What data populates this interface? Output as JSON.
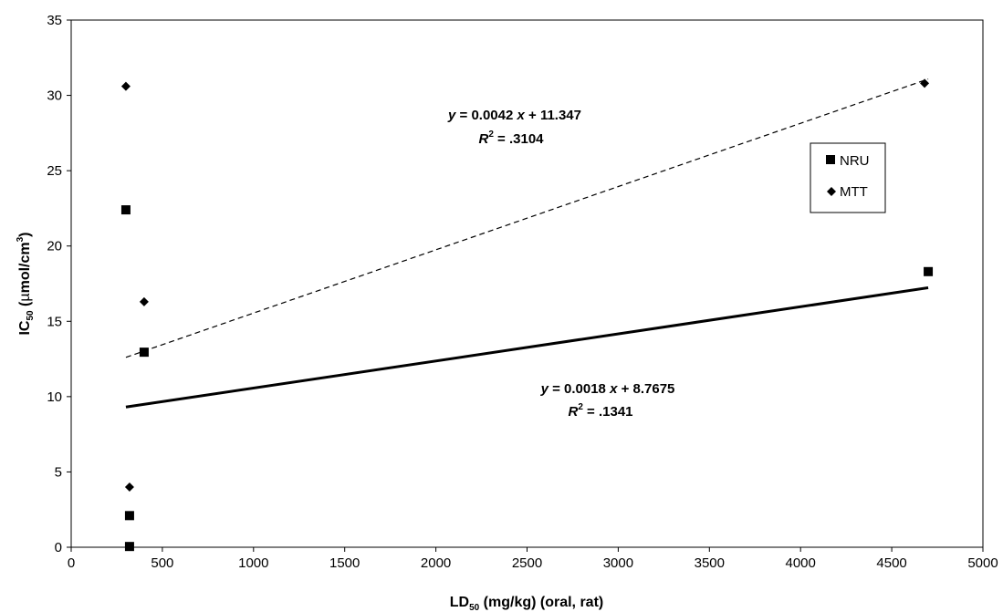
{
  "chart_data": {
    "type": "scatter",
    "xlabel": {
      "main": "LD",
      "sub": "50",
      "rest": " (mg/kg) (oral, rat)"
    },
    "ylabel": {
      "main": "IC",
      "sub": "50",
      "rest_a": " (",
      "mu": "µ",
      "rest_b": "mol/cm",
      "sup": "3",
      "rest_c": ")"
    },
    "xlim": [
      0,
      5000
    ],
    "ylim": [
      0,
      35
    ],
    "xticks": [
      "0",
      "500",
      "1000",
      "1500",
      "2000",
      "2500",
      "3000",
      "3500",
      "4000",
      "4500",
      "5000"
    ],
    "yticks": [
      "0",
      "5",
      "10",
      "15",
      "20",
      "25",
      "30",
      "35"
    ],
    "grid": false,
    "legend_position": "right",
    "series": [
      {
        "name": "NRU",
        "marker": "square",
        "points": [
          [
            300,
            22.4
          ],
          [
            400,
            12.95
          ],
          [
            320,
            2.1
          ],
          [
            320,
            0.05
          ],
          [
            4700,
            18.3
          ]
        ],
        "trend": {
          "slope": 0.0018,
          "intercept": 8.7675,
          "x_range": [
            300,
            4700
          ],
          "style": "solid"
        },
        "equation": {
          "y": "y",
          "rest1": " = 0.0018 ",
          "x": "x",
          "rest2": " + 8.7675",
          "R": "R",
          "sup": "2",
          "rest3": " = .1341"
        }
      },
      {
        "name": "MTT",
        "marker": "diamond",
        "points": [
          [
            300,
            30.6
          ],
          [
            400,
            16.3
          ],
          [
            320,
            4.0
          ],
          [
            4680,
            30.8
          ]
        ],
        "trend": {
          "slope": 0.0042,
          "intercept": 11.347,
          "x_range": [
            300,
            4700
          ],
          "style": "dashed"
        },
        "equation": {
          "y": "y",
          "rest1": " = 0.0042 ",
          "x": "x",
          "rest2": " + 11.347",
          "R": "R",
          "sup": "2",
          "rest3": " = .3104"
        }
      }
    ]
  },
  "colors": {
    "ink": "#000000",
    "background": "#ffffff"
  }
}
